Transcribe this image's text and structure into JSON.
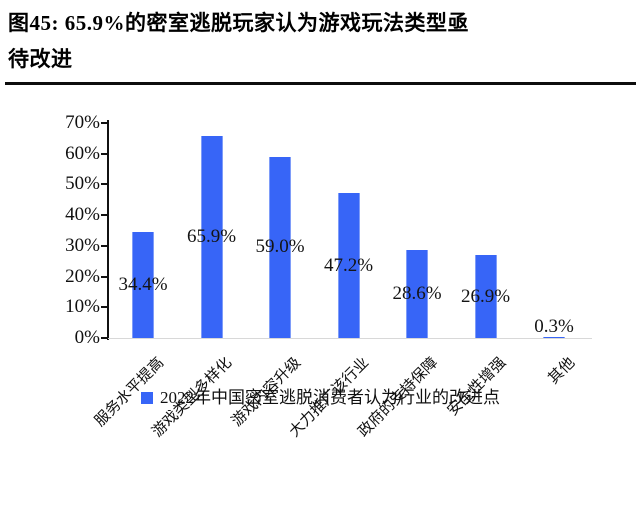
{
  "title": {
    "line1": "图45: 65.9%的密室逃脱玩家认为游戏玩法类型亟",
    "line2": "待改进"
  },
  "legend": {
    "marker_color": "#3765F7",
    "label": "2022年中国密室逃脱消费者认为行业的改进点"
  },
  "colors": {
    "bar": "#3765F7",
    "axis": "#111111",
    "baseline": "#d8d8d8"
  },
  "chart_data": {
    "type": "bar",
    "title": "图45: 65.9%的密室逃脱玩家认为游戏玩法类型亟待改进",
    "categories": [
      "服务水平提高",
      "游戏类型多样化",
      "游戏内容升级",
      "大力推广该行业",
      "政府的支持保障",
      "安全性增强",
      "其他"
    ],
    "values": [
      34.4,
      65.9,
      59.0,
      47.2,
      28.6,
      26.9,
      0.3
    ],
    "value_labels": [
      "34.4%",
      "65.9%",
      "59.0%",
      "47.2%",
      "28.6%",
      "26.9%",
      "0.3%"
    ],
    "y_ticks": [
      "0%",
      "10%",
      "20%",
      "30%",
      "40%",
      "50%",
      "60%",
      "70%"
    ],
    "ylim": [
      0,
      70
    ],
    "xlabel": "",
    "ylabel": "",
    "grid": false,
    "bar_color": "#3765F7",
    "legend": [
      "2022年中国密室逃脱消费者认为行业的改进点"
    ],
    "legend_position": "bottom"
  }
}
